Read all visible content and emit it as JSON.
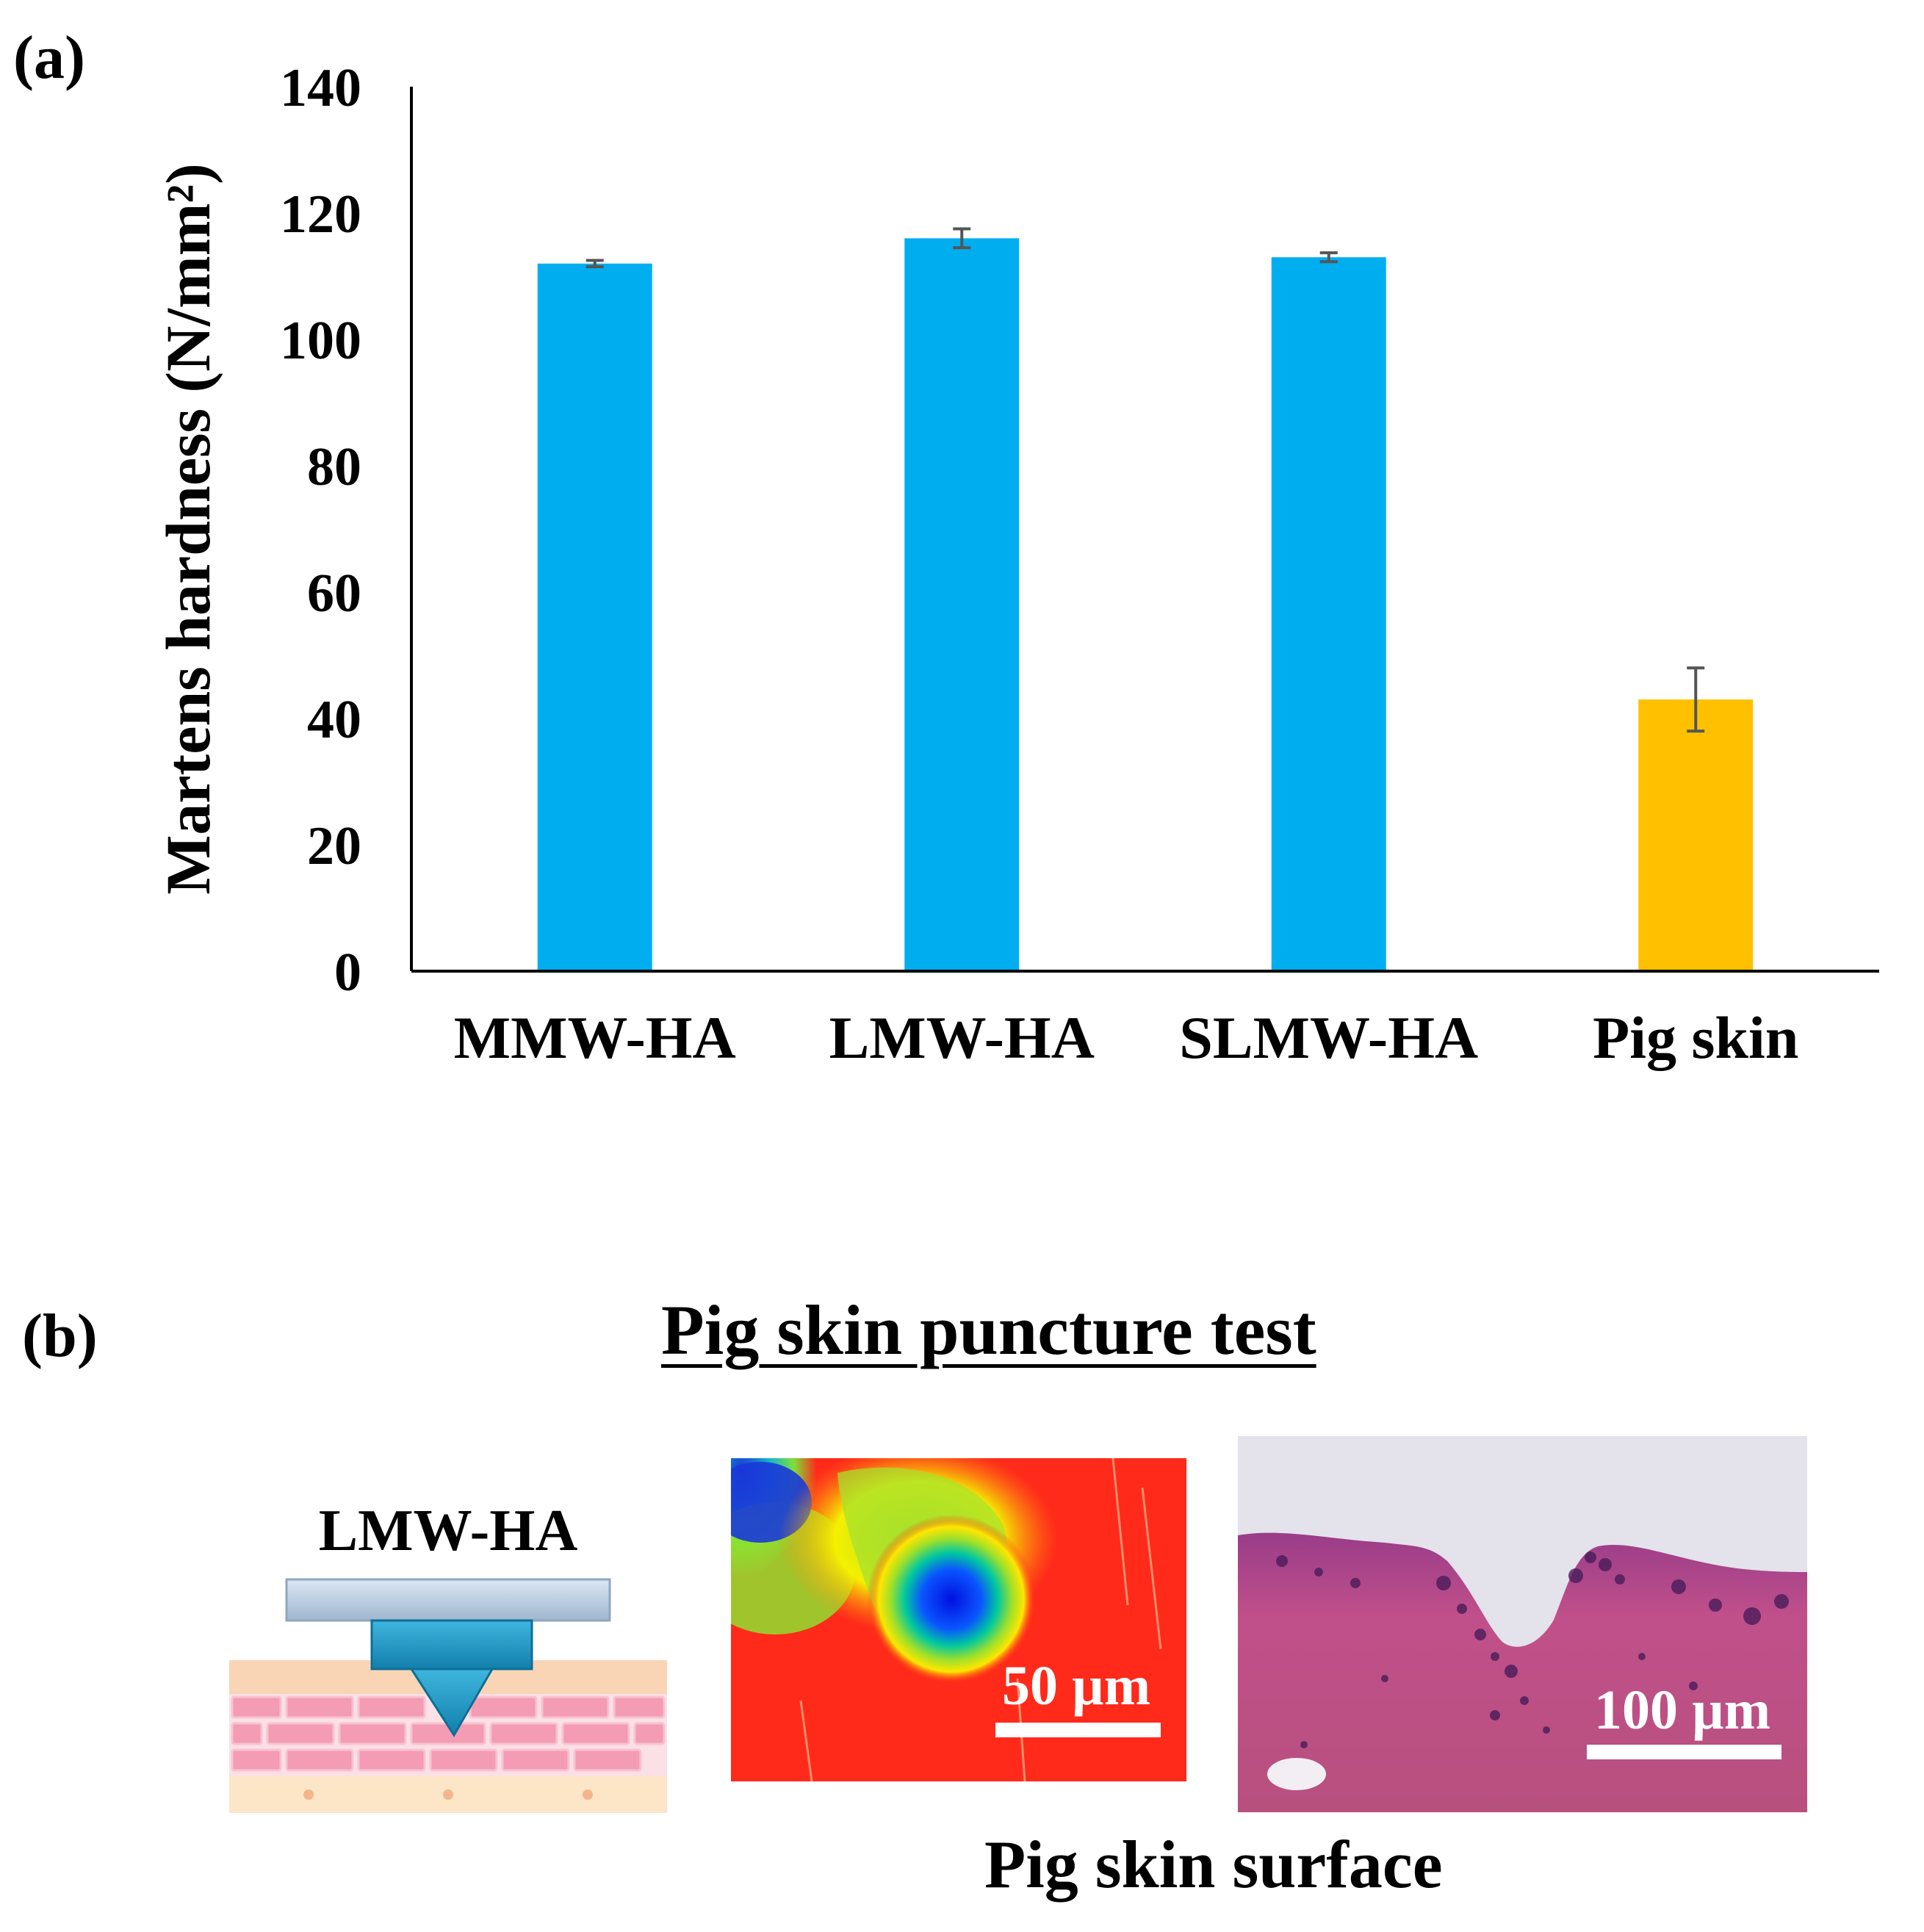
{
  "panel_a_label": "(a)",
  "panel_b_label": "(b)",
  "chart_data": {
    "type": "bar",
    "title": "",
    "xlabel": "",
    "ylabel": "Martens hardness (N/mm²)",
    "ylim": [
      0,
      140
    ],
    "yticks": [
      "0",
      "20",
      "40",
      "60",
      "80",
      "100",
      "120",
      "140"
    ],
    "categories": [
      "MMW-HA",
      "LMW-HA",
      "SLMW-HA",
      "Pig skin"
    ],
    "values": [
      112,
      116,
      113,
      43
    ],
    "errors": [
      0.5,
      1.5,
      0.7,
      5
    ],
    "colors": [
      "#00aeef",
      "#00aeef",
      "#00aeef",
      "#ffc000"
    ],
    "grid": false
  },
  "panel_b": {
    "title": "Pig skin puncture test",
    "schematic_label": "LMW-HA",
    "scale_bar_1": "50 µm",
    "scale_bar_2": "100 µm",
    "caption": "Pig skin surface",
    "colors": {
      "patch_base": "#b9cfe6",
      "needle": "#1e98c4",
      "skin_upper": "#f9d5b6",
      "skin_cells": "#f49cb3",
      "heat_red": "#ff2a1a",
      "heat_blue": "#0018e8",
      "tissue": "#b04a8a"
    }
  }
}
